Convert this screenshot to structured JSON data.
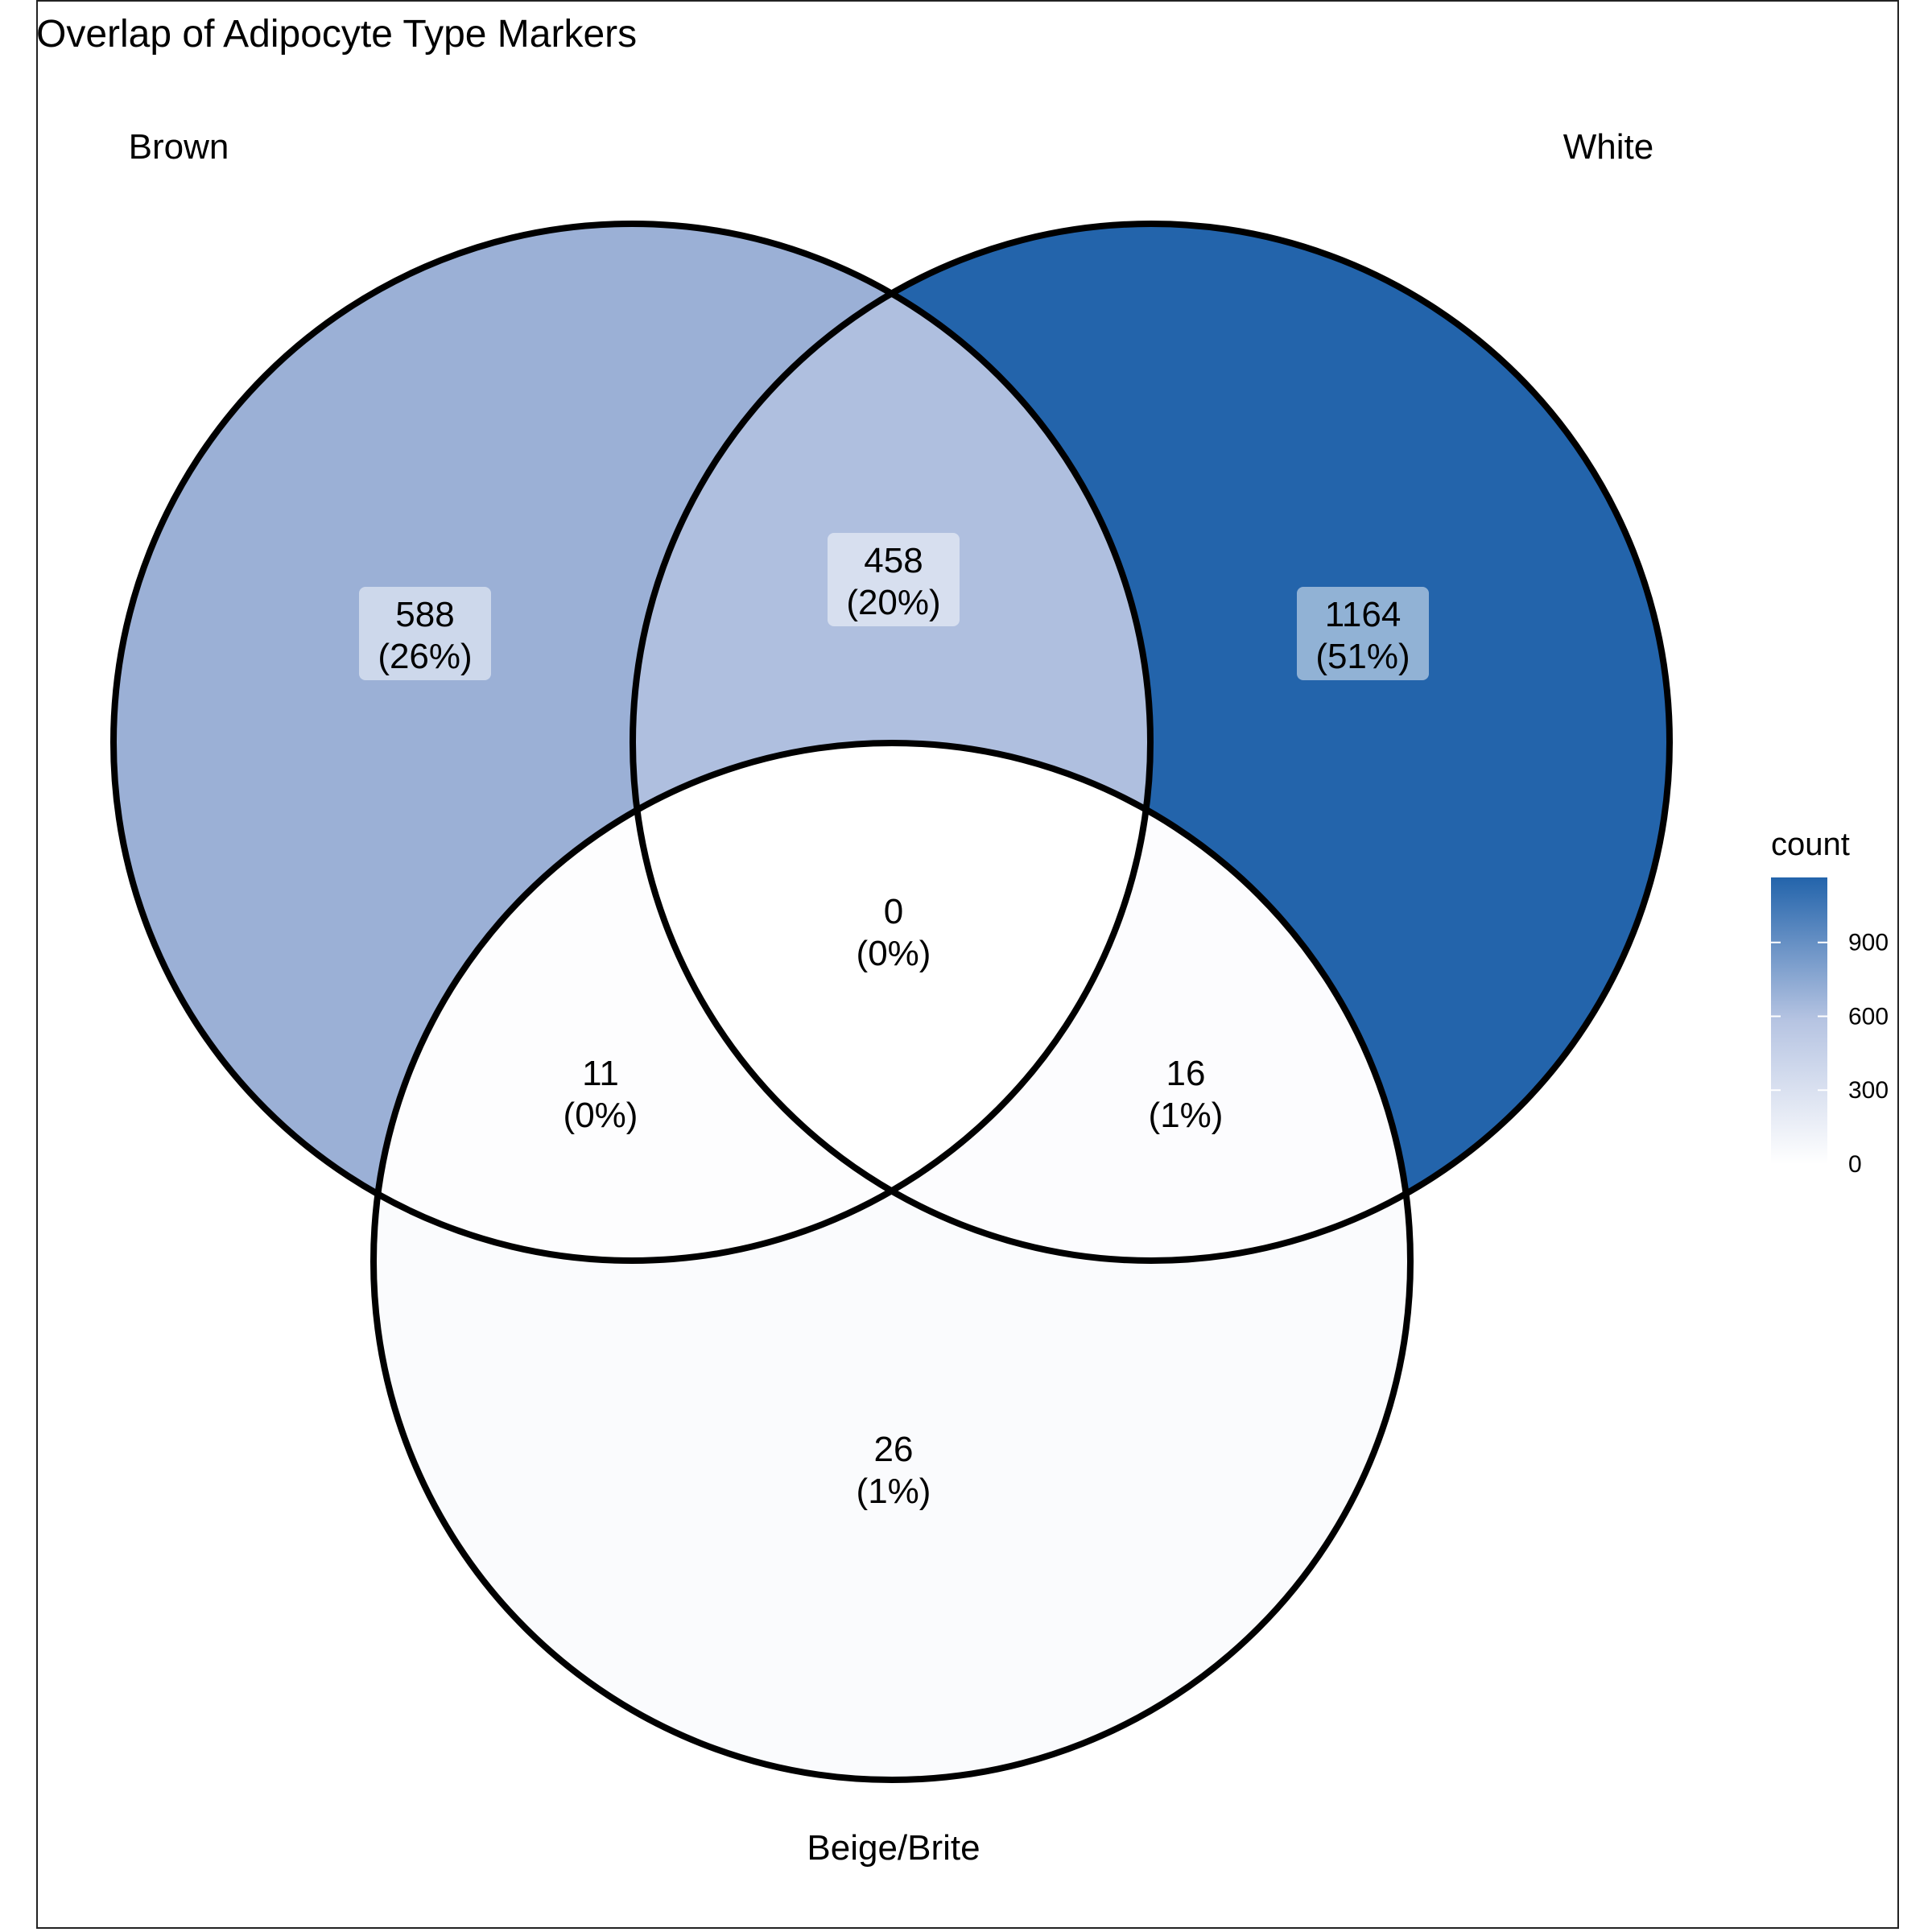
{
  "title": "Overlap of Adipocyte Type Markers",
  "sets": {
    "brown": "Brown",
    "white": "White",
    "beige": "Beige/Brite"
  },
  "regions": {
    "brown_only": {
      "count": "588",
      "pct": "(26%)",
      "value": 588,
      "color": "#9bb0d6"
    },
    "brown_white": {
      "count": "458",
      "pct": "(20%)",
      "value": 458,
      "color": "#afbfdf"
    },
    "white_only": {
      "count": "1164",
      "pct": "(51%)",
      "value": 1164,
      "color": "#2364ab"
    },
    "brown_beige": {
      "count": "11",
      "pct": "(0%)",
      "value": 11,
      "color": "#fdfdfe"
    },
    "all_three": {
      "count": "0",
      "pct": "(0%)",
      "value": 0,
      "color": "#ffffff"
    },
    "white_beige": {
      "count": "16",
      "pct": "(1%)",
      "value": 16,
      "color": "#fcfcfe"
    },
    "beige_only": {
      "count": "26",
      "pct": "(1%)",
      "value": 26,
      "color": "#fafbfd"
    }
  },
  "legend": {
    "title": "count",
    "ticks": [
      "0",
      "300",
      "600",
      "900"
    ],
    "tick_values": [
      0,
      300,
      600,
      900
    ],
    "min": 0,
    "max": 1164,
    "color_low": "#ffffff",
    "color_high": "#2364ab"
  }
}
